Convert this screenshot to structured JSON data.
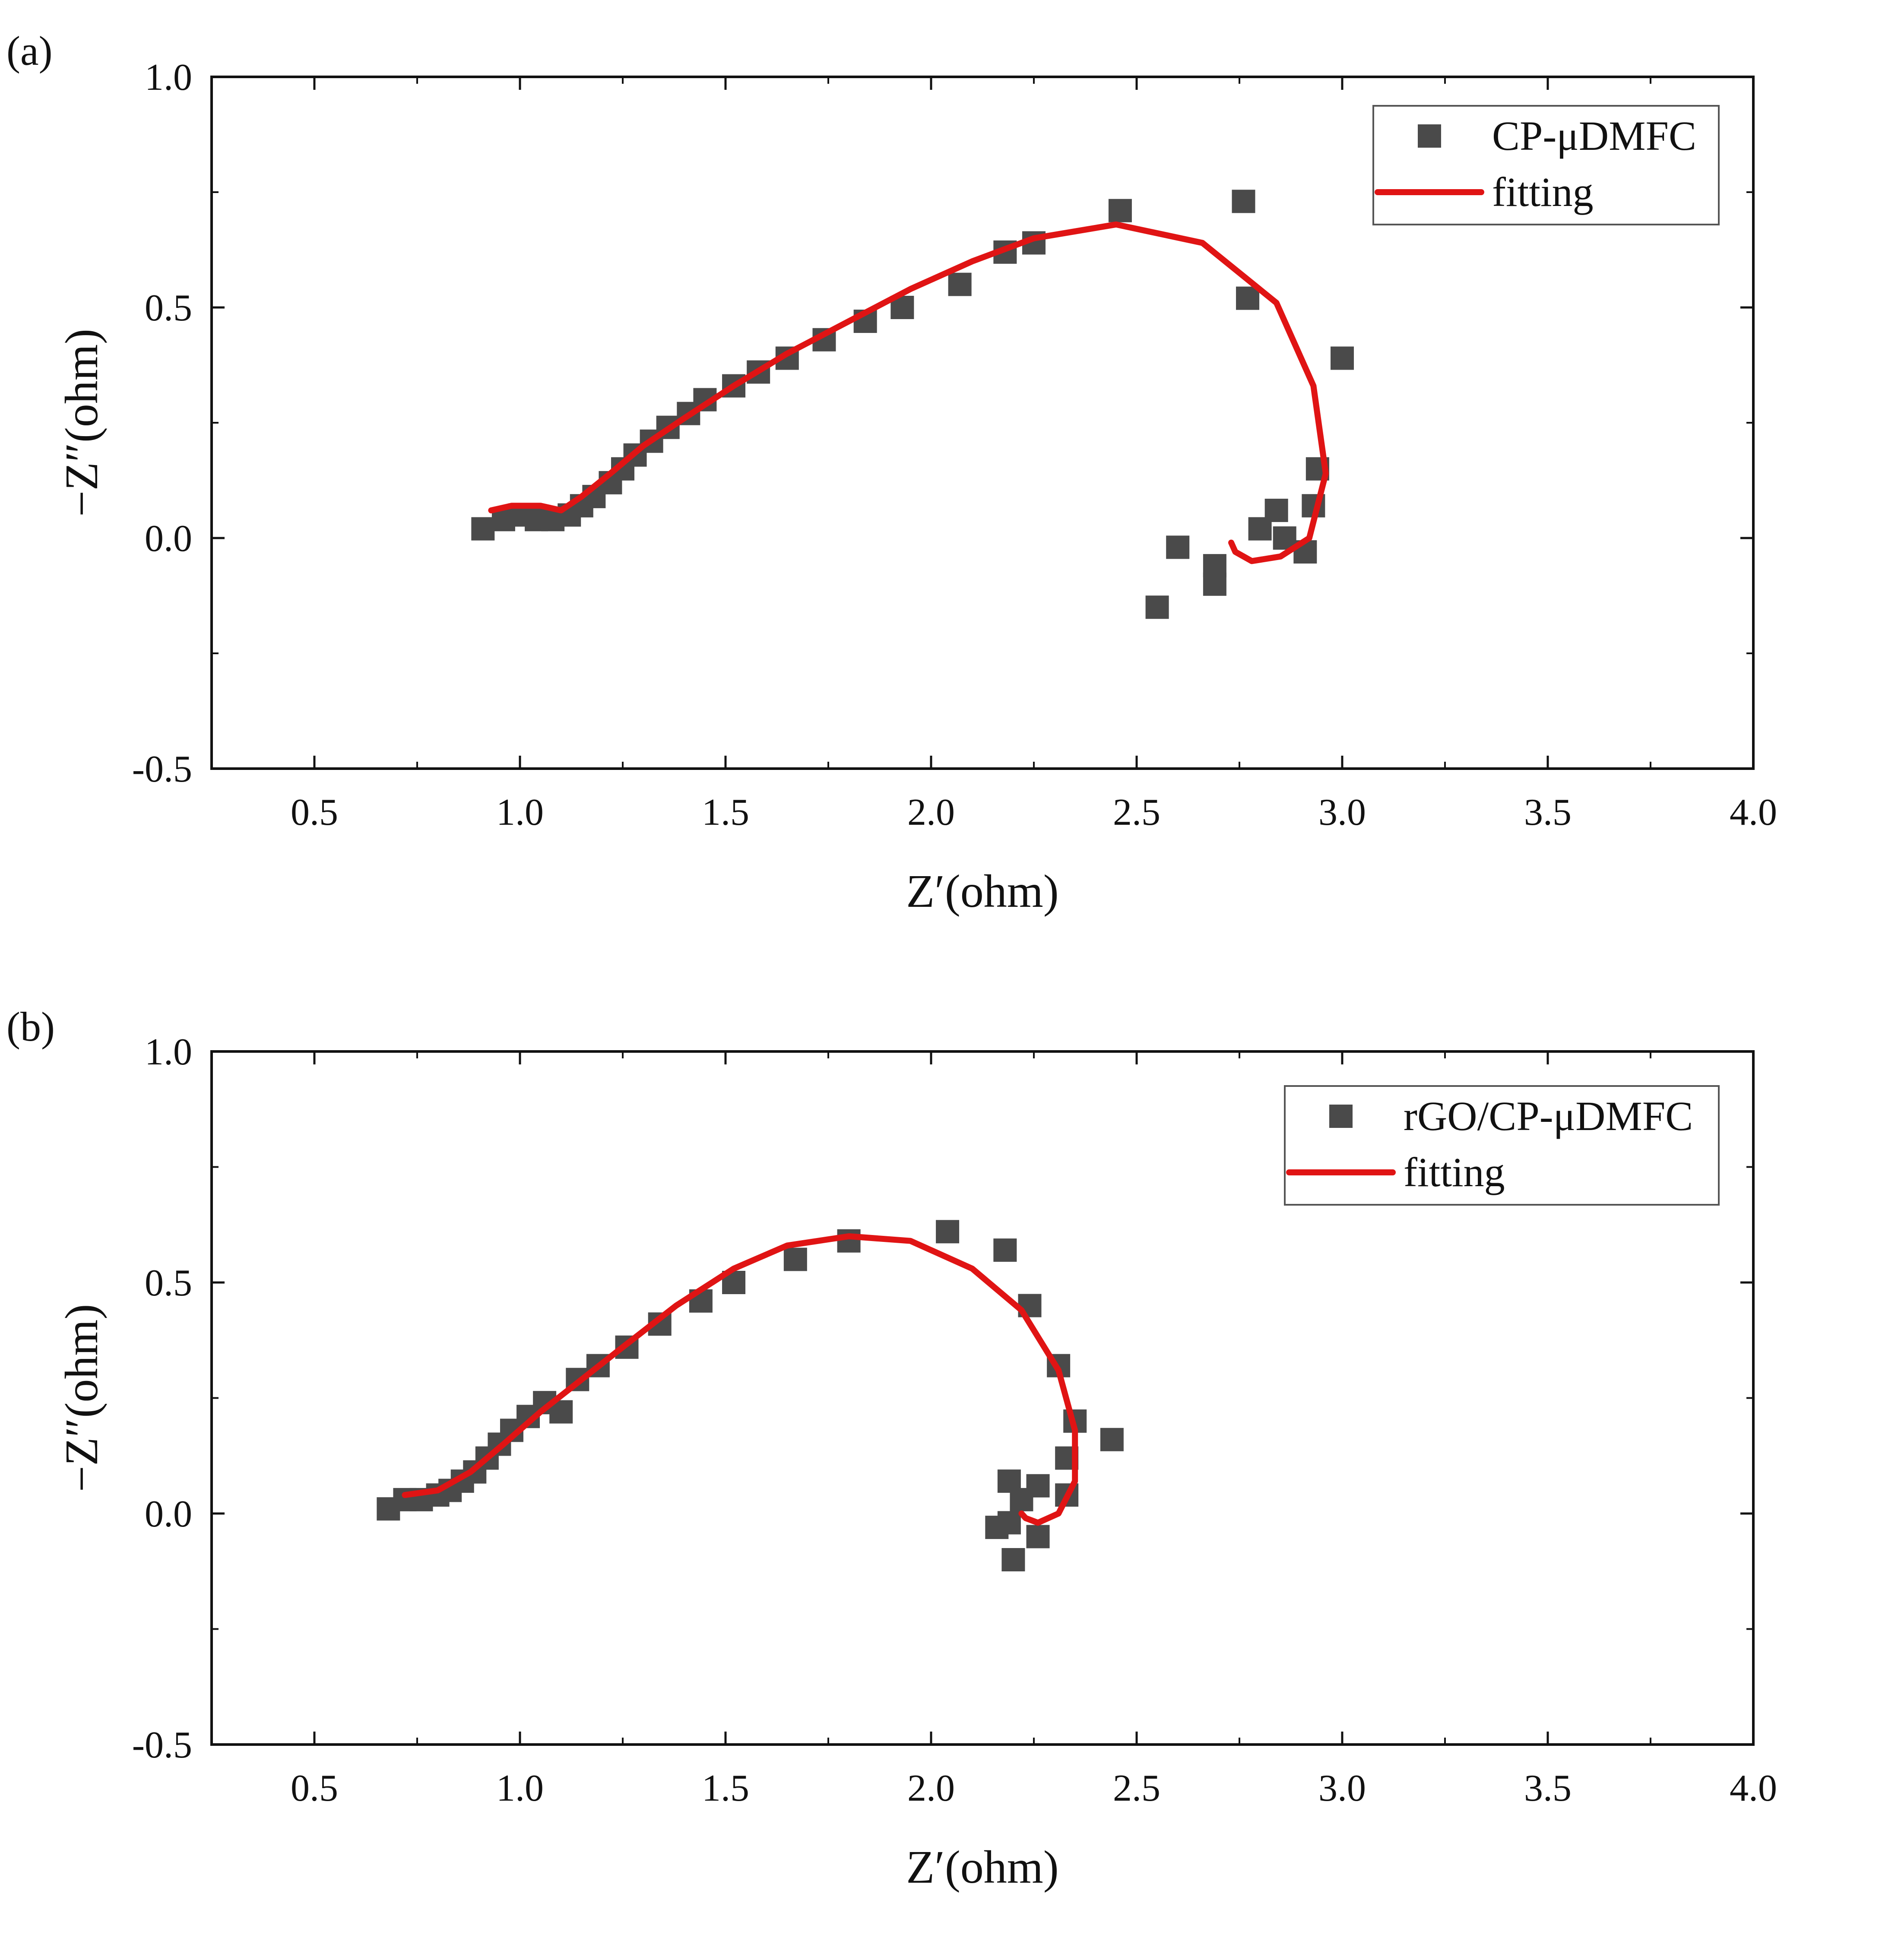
{
  "colors": {
    "marker": "#4a4a4a",
    "fit": "#e01414",
    "axis": "#111111"
  },
  "chart_data": [
    {
      "type": "scatter",
      "panel_label": "(a)",
      "xlabel": "Z′(ohm)",
      "ylabel": "−Z″(ohm)",
      "xlim": [
        0.25,
        4.0
      ],
      "ylim": [
        -0.5,
        1.0
      ],
      "xticks": [
        "0.5",
        "1.0",
        "1.5",
        "2.0",
        "2.5",
        "3.0",
        "3.5",
        "4.0"
      ],
      "yticks": [
        "1.0",
        "0.5",
        "0.0",
        "-0.5"
      ],
      "legend_position": "top-right",
      "series": [
        {
          "name": "CP-μDMFC",
          "kind": "scatter",
          "points": [
            [
              0.91,
              0.02
            ],
            [
              0.96,
              0.04
            ],
            [
              1.0,
              0.05
            ],
            [
              1.04,
              0.04
            ],
            [
              1.08,
              0.04
            ],
            [
              1.12,
              0.05
            ],
            [
              1.15,
              0.07
            ],
            [
              1.18,
              0.09
            ],
            [
              1.22,
              0.12
            ],
            [
              1.25,
              0.15
            ],
            [
              1.28,
              0.18
            ],
            [
              1.32,
              0.21
            ],
            [
              1.36,
              0.24
            ],
            [
              1.41,
              0.27
            ],
            [
              1.45,
              0.3
            ],
            [
              1.52,
              0.33
            ],
            [
              1.58,
              0.36
            ],
            [
              1.65,
              0.39
            ],
            [
              1.74,
              0.43
            ],
            [
              1.84,
              0.47
            ],
            [
              1.93,
              0.5
            ],
            [
              2.07,
              0.55
            ],
            [
              2.18,
              0.62
            ],
            [
              2.25,
              0.64
            ],
            [
              2.46,
              0.71
            ],
            [
              2.76,
              0.73
            ],
            [
              2.77,
              0.52
            ],
            [
              3.0,
              0.39
            ],
            [
              2.94,
              0.15
            ],
            [
              2.93,
              0.07
            ],
            [
              2.84,
              0.06
            ],
            [
              2.8,
              0.02
            ],
            [
              2.86,
              0.0
            ],
            [
              2.91,
              -0.03
            ],
            [
              2.6,
              -0.02
            ],
            [
              2.69,
              -0.06
            ],
            [
              2.69,
              -0.1
            ],
            [
              2.55,
              -0.15
            ]
          ]
        },
        {
          "name": "fitting",
          "kind": "line",
          "points": [
            [
              0.93,
              0.06
            ],
            [
              0.98,
              0.07
            ],
            [
              1.05,
              0.07
            ],
            [
              1.1,
              0.06
            ],
            [
              1.15,
              0.09
            ],
            [
              1.22,
              0.14
            ],
            [
              1.3,
              0.2
            ],
            [
              1.4,
              0.26
            ],
            [
              1.52,
              0.33
            ],
            [
              1.65,
              0.4
            ],
            [
              1.8,
              0.47
            ],
            [
              1.95,
              0.54
            ],
            [
              2.1,
              0.6
            ],
            [
              2.25,
              0.65
            ],
            [
              2.45,
              0.68
            ],
            [
              2.66,
              0.64
            ],
            [
              2.84,
              0.51
            ],
            [
              2.93,
              0.33
            ],
            [
              2.96,
              0.14
            ],
            [
              2.92,
              0.0
            ],
            [
              2.85,
              -0.04
            ],
            [
              2.78,
              -0.05
            ],
            [
              2.74,
              -0.03
            ],
            [
              2.73,
              -0.01
            ]
          ]
        }
      ]
    },
    {
      "type": "scatter",
      "panel_label": "(b)",
      "xlabel": "Z′(ohm)",
      "ylabel": "−Z″(ohm)",
      "xlim": [
        0.25,
        4.0
      ],
      "ylim": [
        -0.5,
        1.0
      ],
      "xticks": [
        "0.5",
        "1.0",
        "1.5",
        "2.0",
        "2.5",
        "3.0",
        "3.5",
        "4.0"
      ],
      "yticks": [
        "1.0",
        "0.5",
        "0.0",
        "-0.5"
      ],
      "legend_position": "top-right",
      "series": [
        {
          "name": "rGO/CP-μDMFC",
          "kind": "scatter",
          "points": [
            [
              0.68,
              0.01
            ],
            [
              0.72,
              0.03
            ],
            [
              0.76,
              0.03
            ],
            [
              0.8,
              0.04
            ],
            [
              0.83,
              0.05
            ],
            [
              0.86,
              0.07
            ],
            [
              0.89,
              0.09
            ],
            [
              0.92,
              0.12
            ],
            [
              0.95,
              0.15
            ],
            [
              0.98,
              0.18
            ],
            [
              1.02,
              0.21
            ],
            [
              1.06,
              0.24
            ],
            [
              1.1,
              0.22
            ],
            [
              1.14,
              0.29
            ],
            [
              1.19,
              0.32
            ],
            [
              1.26,
              0.36
            ],
            [
              1.34,
              0.41
            ],
            [
              1.44,
              0.46
            ],
            [
              1.52,
              0.5
            ],
            [
              1.67,
              0.55
            ],
            [
              1.8,
              0.59
            ],
            [
              2.04,
              0.61
            ],
            [
              2.18,
              0.57
            ],
            [
              2.24,
              0.45
            ],
            [
              2.31,
              0.32
            ],
            [
              2.35,
              0.2
            ],
            [
              2.33,
              0.12
            ],
            [
              2.33,
              0.04
            ],
            [
              2.44,
              0.16
            ],
            [
              2.19,
              0.07
            ],
            [
              2.22,
              0.03
            ],
            [
              2.26,
              0.06
            ],
            [
              2.16,
              -0.03
            ],
            [
              2.19,
              -0.02
            ],
            [
              2.26,
              -0.05
            ],
            [
              2.2,
              -0.1
            ]
          ]
        },
        {
          "name": "fitting",
          "kind": "line",
          "points": [
            [
              0.72,
              0.04
            ],
            [
              0.8,
              0.05
            ],
            [
              0.88,
              0.09
            ],
            [
              0.96,
              0.15
            ],
            [
              1.05,
              0.22
            ],
            [
              1.15,
              0.29
            ],
            [
              1.25,
              0.36
            ],
            [
              1.38,
              0.45
            ],
            [
              1.52,
              0.53
            ],
            [
              1.65,
              0.58
            ],
            [
              1.8,
              0.6
            ],
            [
              1.95,
              0.59
            ],
            [
              2.1,
              0.53
            ],
            [
              2.22,
              0.44
            ],
            [
              2.31,
              0.31
            ],
            [
              2.35,
              0.18
            ],
            [
              2.35,
              0.07
            ],
            [
              2.31,
              0.0
            ],
            [
              2.26,
              -0.02
            ],
            [
              2.23,
              -0.01
            ],
            [
              2.22,
              0.0
            ]
          ]
        }
      ]
    }
  ]
}
